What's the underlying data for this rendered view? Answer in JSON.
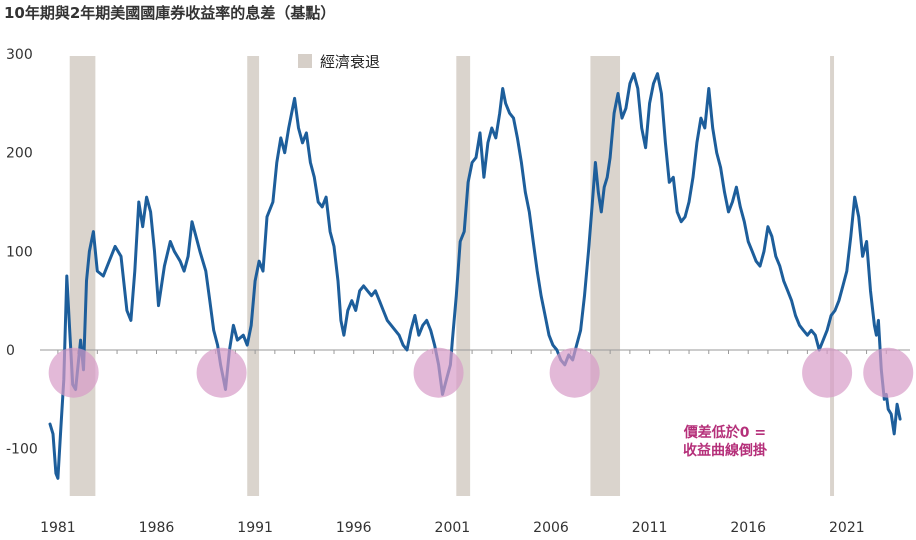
{
  "chart_data": {
    "type": "line",
    "title": "10年期與2年期美國國庫券收益率的息差（基點）",
    "ylim": [
      -150,
      300
    ],
    "y_ticks": [
      300,
      200,
      100,
      0,
      -100
    ],
    "x_ticks": [
      "1981",
      "1986",
      "1991",
      "1996",
      "2001",
      "2006",
      "2011",
      "2016",
      "2021"
    ],
    "grid": false,
    "legend": {
      "placement": "top-center",
      "label": "經濟衰退",
      "color": "#d6cfc8"
    },
    "line_color": "#1d5e9b",
    "highlight_color": "#d79bc8",
    "recessions": [
      [
        1981.6,
        1982.9
      ],
      [
        1990.6,
        1991.2
      ],
      [
        2001.2,
        2001.9
      ],
      [
        2008.0,
        2009.5
      ],
      [
        2020.15,
        2020.35
      ]
    ],
    "inversion_markers": [
      [
        1981.8,
        -23
      ],
      [
        1989.3,
        -23
      ],
      [
        2000.3,
        -23
      ],
      [
        2007.2,
        -23
      ],
      [
        2020.0,
        -23
      ],
      [
        2023.1,
        -23
      ]
    ],
    "annotation": [
      "價差低於0 =",
      "收益曲線倒掛"
    ],
    "series": [
      {
        "values": [
          [
            1980.6,
            -75
          ],
          [
            1980.75,
            -85
          ],
          [
            1980.9,
            -125
          ],
          [
            1981.0,
            -130
          ],
          [
            1981.15,
            -80
          ],
          [
            1981.3,
            -30
          ],
          [
            1981.45,
            75
          ],
          [
            1981.6,
            20
          ],
          [
            1981.75,
            -35
          ],
          [
            1981.9,
            -40
          ],
          [
            1982.0,
            -20
          ],
          [
            1982.15,
            10
          ],
          [
            1982.3,
            -20
          ],
          [
            1982.45,
            70
          ],
          [
            1982.6,
            100
          ],
          [
            1982.8,
            120
          ],
          [
            1983.0,
            80
          ],
          [
            1983.3,
            75
          ],
          [
            1983.6,
            90
          ],
          [
            1983.9,
            105
          ],
          [
            1984.2,
            95
          ],
          [
            1984.5,
            40
          ],
          [
            1984.7,
            30
          ],
          [
            1984.9,
            80
          ],
          [
            1985.1,
            150
          ],
          [
            1985.3,
            125
          ],
          [
            1985.5,
            155
          ],
          [
            1985.7,
            140
          ],
          [
            1985.9,
            100
          ],
          [
            1986.1,
            45
          ],
          [
            1986.4,
            85
          ],
          [
            1986.7,
            110
          ],
          [
            1986.9,
            100
          ],
          [
            1987.2,
            90
          ],
          [
            1987.4,
            80
          ],
          [
            1987.6,
            95
          ],
          [
            1987.8,
            130
          ],
          [
            1988.0,
            115
          ],
          [
            1988.2,
            100
          ],
          [
            1988.5,
            80
          ],
          [
            1988.7,
            50
          ],
          [
            1988.9,
            20
          ],
          [
            1989.1,
            5
          ],
          [
            1989.25,
            -15
          ],
          [
            1989.4,
            -30
          ],
          [
            1989.5,
            -40
          ],
          [
            1989.7,
            0
          ],
          [
            1989.9,
            25
          ],
          [
            1990.1,
            10
          ],
          [
            1990.4,
            15
          ],
          [
            1990.6,
            5
          ],
          [
            1990.8,
            25
          ],
          [
            1991.0,
            70
          ],
          [
            1991.2,
            90
          ],
          [
            1991.4,
            80
          ],
          [
            1991.6,
            135
          ],
          [
            1991.9,
            150
          ],
          [
            1992.1,
            190
          ],
          [
            1992.3,
            215
          ],
          [
            1992.5,
            200
          ],
          [
            1992.7,
            225
          ],
          [
            1992.9,
            245
          ],
          [
            1993.0,
            255
          ],
          [
            1993.2,
            225
          ],
          [
            1993.4,
            210
          ],
          [
            1993.6,
            220
          ],
          [
            1993.8,
            190
          ],
          [
            1994.0,
            175
          ],
          [
            1994.2,
            150
          ],
          [
            1994.4,
            145
          ],
          [
            1994.6,
            155
          ],
          [
            1994.8,
            120
          ],
          [
            1995.0,
            105
          ],
          [
            1995.2,
            70
          ],
          [
            1995.35,
            30
          ],
          [
            1995.5,
            15
          ],
          [
            1995.7,
            40
          ],
          [
            1995.9,
            50
          ],
          [
            1996.1,
            40
          ],
          [
            1996.3,
            60
          ],
          [
            1996.5,
            65
          ],
          [
            1996.7,
            60
          ],
          [
            1996.9,
            55
          ],
          [
            1997.1,
            60
          ],
          [
            1997.3,
            50
          ],
          [
            1997.5,
            40
          ],
          [
            1997.7,
            30
          ],
          [
            1997.9,
            25
          ],
          [
            1998.1,
            20
          ],
          [
            1998.3,
            15
          ],
          [
            1998.5,
            5
          ],
          [
            1998.7,
            0
          ],
          [
            1998.9,
            20
          ],
          [
            1999.1,
            35
          ],
          [
            1999.3,
            15
          ],
          [
            1999.5,
            25
          ],
          [
            1999.7,
            30
          ],
          [
            1999.9,
            20
          ],
          [
            2000.1,
            5
          ],
          [
            2000.3,
            -15
          ],
          [
            2000.5,
            -45
          ],
          [
            2000.7,
            -30
          ],
          [
            2000.9,
            -15
          ],
          [
            2001.0,
            10
          ],
          [
            2001.2,
            55
          ],
          [
            2001.4,
            110
          ],
          [
            2001.6,
            120
          ],
          [
            2001.8,
            170
          ],
          [
            2002.0,
            190
          ],
          [
            2002.2,
            195
          ],
          [
            2002.4,
            220
          ],
          [
            2002.6,
            175
          ],
          [
            2002.8,
            210
          ],
          [
            2003.0,
            225
          ],
          [
            2003.2,
            215
          ],
          [
            2003.4,
            240
          ],
          [
            2003.55,
            265
          ],
          [
            2003.7,
            250
          ],
          [
            2003.9,
            240
          ],
          [
            2004.1,
            235
          ],
          [
            2004.3,
            215
          ],
          [
            2004.5,
            190
          ],
          [
            2004.7,
            160
          ],
          [
            2004.9,
            140
          ],
          [
            2005.1,
            110
          ],
          [
            2005.3,
            80
          ],
          [
            2005.5,
            55
          ],
          [
            2005.7,
            35
          ],
          [
            2005.9,
            15
          ],
          [
            2006.1,
            5
          ],
          [
            2006.3,
            0
          ],
          [
            2006.5,
            -10
          ],
          [
            2006.7,
            -15
          ],
          [
            2006.9,
            -5
          ],
          [
            2007.1,
            -10
          ],
          [
            2007.3,
            5
          ],
          [
            2007.5,
            20
          ],
          [
            2007.7,
            55
          ],
          [
            2007.9,
            100
          ],
          [
            2008.1,
            150
          ],
          [
            2008.25,
            190
          ],
          [
            2008.4,
            160
          ],
          [
            2008.55,
            140
          ],
          [
            2008.7,
            165
          ],
          [
            2008.85,
            175
          ],
          [
            2009.0,
            195
          ],
          [
            2009.2,
            240
          ],
          [
            2009.4,
            260
          ],
          [
            2009.6,
            235
          ],
          [
            2009.8,
            245
          ],
          [
            2010.0,
            270
          ],
          [
            2010.2,
            280
          ],
          [
            2010.4,
            265
          ],
          [
            2010.6,
            225
          ],
          [
            2010.8,
            205
          ],
          [
            2011.0,
            250
          ],
          [
            2011.2,
            270
          ],
          [
            2011.4,
            280
          ],
          [
            2011.6,
            260
          ],
          [
            2011.8,
            210
          ],
          [
            2012.0,
            170
          ],
          [
            2012.2,
            175
          ],
          [
            2012.4,
            140
          ],
          [
            2012.6,
            130
          ],
          [
            2012.8,
            135
          ],
          [
            2013.0,
            150
          ],
          [
            2013.2,
            175
          ],
          [
            2013.4,
            210
          ],
          [
            2013.6,
            235
          ],
          [
            2013.8,
            225
          ],
          [
            2014.0,
            265
          ],
          [
            2014.2,
            225
          ],
          [
            2014.4,
            200
          ],
          [
            2014.6,
            185
          ],
          [
            2014.8,
            160
          ],
          [
            2015.0,
            140
          ],
          [
            2015.2,
            150
          ],
          [
            2015.4,
            165
          ],
          [
            2015.6,
            145
          ],
          [
            2015.8,
            130
          ],
          [
            2016.0,
            110
          ],
          [
            2016.2,
            100
          ],
          [
            2016.4,
            90
          ],
          [
            2016.6,
            85
          ],
          [
            2016.8,
            100
          ],
          [
            2017.0,
            125
          ],
          [
            2017.2,
            115
          ],
          [
            2017.4,
            95
          ],
          [
            2017.6,
            85
          ],
          [
            2017.8,
            70
          ],
          [
            2018.0,
            60
          ],
          [
            2018.2,
            50
          ],
          [
            2018.4,
            35
          ],
          [
            2018.6,
            25
          ],
          [
            2018.8,
            20
          ],
          [
            2019.0,
            15
          ],
          [
            2019.2,
            20
          ],
          [
            2019.4,
            15
          ],
          [
            2019.6,
            0
          ],
          [
            2019.8,
            10
          ],
          [
            2020.0,
            20
          ],
          [
            2020.2,
            35
          ],
          [
            2020.4,
            40
          ],
          [
            2020.6,
            50
          ],
          [
            2020.8,
            65
          ],
          [
            2021.0,
            80
          ],
          [
            2021.2,
            115
          ],
          [
            2021.4,
            155
          ],
          [
            2021.6,
            135
          ],
          [
            2021.8,
            95
          ],
          [
            2022.0,
            110
          ],
          [
            2022.2,
            60
          ],
          [
            2022.4,
            25
          ],
          [
            2022.5,
            15
          ],
          [
            2022.6,
            30
          ],
          [
            2022.75,
            -20
          ],
          [
            2022.9,
            -50
          ],
          [
            2023.0,
            -45
          ],
          [
            2023.1,
            -60
          ],
          [
            2023.25,
            -65
          ],
          [
            2023.4,
            -85
          ],
          [
            2023.55,
            -55
          ],
          [
            2023.7,
            -70
          ]
        ]
      }
    ]
  }
}
